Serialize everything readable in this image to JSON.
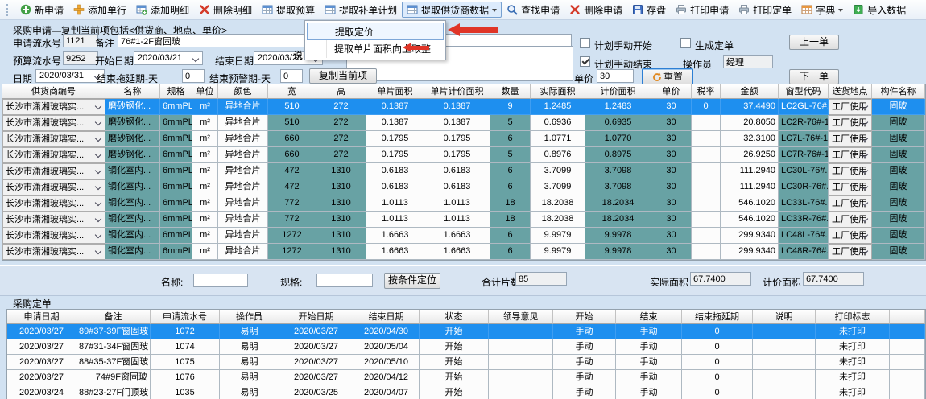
{
  "colors": {
    "teal_cell": "#68a2a4",
    "selection_blue": "#1e8fef",
    "annotation_red": "#e03527"
  },
  "toolbar": {
    "items": [
      {
        "name": "new-application-button",
        "icon": "new-plus-icon",
        "label": "新申请"
      },
      {
        "name": "add-single-row-button",
        "icon": "add-row-icon",
        "label": "添加单行"
      },
      {
        "name": "add-detail-button",
        "icon": "add-detail-icon",
        "label": "添加明细"
      },
      {
        "name": "delete-detail-button",
        "icon": "delete-detail-icon",
        "label": "删除明细"
      },
      {
        "name": "extract-budget-button",
        "icon": "extract-budget-icon",
        "label": "提取预算"
      },
      {
        "name": "extract-supplement-plan-button",
        "icon": "extract-plan-icon",
        "label": "提取补单计划"
      },
      {
        "name": "extract-supplier-data-button",
        "icon": "extract-supplier-icon",
        "label": "提取供货商数据",
        "caret": true,
        "active": true
      },
      {
        "name": "find-application-button",
        "icon": "search-icon",
        "label": "查找申请"
      },
      {
        "name": "delete-application-button",
        "icon": "delete-application-icon",
        "label": "删除申请"
      },
      {
        "name": "save-button",
        "icon": "save-icon",
        "label": "存盘"
      },
      {
        "name": "print-application-button",
        "icon": "print-application-icon",
        "label": "打印申请"
      },
      {
        "name": "print-order-button",
        "icon": "print-order-icon",
        "label": "打印定单"
      },
      {
        "name": "dictionary-button",
        "icon": "dictionary-icon",
        "label": "字典",
        "caret": true
      },
      {
        "name": "import-data-button",
        "icon": "import-data-icon",
        "label": "导入数据"
      }
    ]
  },
  "context_menu": {
    "items": [
      {
        "label": "提取定价",
        "highlighted": true
      },
      {
        "label": "提取单片面积向上取整",
        "highlighted": false
      }
    ]
  },
  "form": {
    "title": "采购申请—复制当前项包括<供货商、地点、单价>",
    "app_serial_label": "申请流水号",
    "app_serial_value": "1121",
    "remark_label": "备注",
    "remark_value": "76#1-2F窗固玻",
    "budget_serial_label": "预算流水号",
    "budget_serial_value": "9252",
    "start_date_label": "开始日期",
    "start_date_value": "2020/03/21",
    "end_date_label": "结束日期",
    "end_date_value": "2020/03/28",
    "date_label": "日期",
    "date_value": "2020/03/31",
    "end_delay_label": "结束拖延期-天",
    "end_delay_value": "0",
    "end_warning_label": "结束预警期-天",
    "end_warning_value": "0",
    "copy_current_button": "复制当前项",
    "description_label": "说明",
    "checkboxes": [
      {
        "label": "计划手动开始",
        "checked": false
      },
      {
        "label": "生成定单",
        "checked": false
      },
      {
        "label": "计划手动结束",
        "checked": true
      }
    ],
    "operator_label": "操作员",
    "operator_value": "经理",
    "unit_price_label": "单价",
    "unit_price_value": "30",
    "reset_button": "重置",
    "prev_order_button": "上一单",
    "next_order_button": "下一单"
  },
  "main_table": {
    "selected_row": 0,
    "headers": [
      "供货商编号",
      "名称",
      "规格",
      "单位",
      "颜色",
      "宽",
      "高",
      "单片面积",
      "单片计价面积",
      "数量",
      "实际面积",
      "计价面积",
      "单价",
      "税率",
      "金额",
      "窗型代码",
      "送货地点",
      "构件名称"
    ],
    "rows": [
      [
        "长沙市潇湘玻璃实...",
        "磨砂钢化...",
        "6mmPLE...",
        "m²",
        "异地合片",
        "510",
        "272",
        "0.1387",
        "0.1387",
        "9",
        "1.2485",
        "1.2483",
        "30",
        "0",
        "37.4490",
        "LC2GL-76#...",
        "工厂使用",
        "固玻"
      ],
      [
        "长沙市潇湘玻璃实...",
        "磨砂钢化...",
        "6mmPLE...",
        "m²",
        "异地合片",
        "510",
        "272",
        "0.1387",
        "0.1387",
        "5",
        "0.6936",
        "0.6935",
        "30",
        "",
        "20.8050",
        "LC2R-76#-1F",
        "工厂使用",
        "固玻"
      ],
      [
        "长沙市潇湘玻璃实...",
        "磨砂钢化...",
        "6mmPLE...",
        "m²",
        "异地合片",
        "660",
        "272",
        "0.1795",
        "0.1795",
        "6",
        "1.0771",
        "1.0770",
        "30",
        "",
        "32.3100",
        "LC7L-76#-1FO",
        "工厂使用",
        "固玻"
      ],
      [
        "长沙市潇湘玻璃实...",
        "磨砂钢化...",
        "6mmPLE...",
        "m²",
        "异地合片",
        "660",
        "272",
        "0.1795",
        "0.1795",
        "5",
        "0.8976",
        "0.8975",
        "30",
        "",
        "26.9250",
        "LC7R-76#-1FO",
        "工厂使用",
        "固玻"
      ],
      [
        "长沙市潇湘玻璃实...",
        "钢化室内...",
        "6mmPLE...",
        "m²",
        "异地合片",
        "472",
        "1310",
        "0.6183",
        "0.6183",
        "6",
        "3.7099",
        "3.7098",
        "30",
        "",
        "111.2940",
        "LC30L-76#...",
        "工厂使用",
        "固玻"
      ],
      [
        "长沙市潇湘玻璃实...",
        "钢化室内...",
        "6mmPLE...",
        "m²",
        "异地合片",
        "472",
        "1310",
        "0.6183",
        "0.6183",
        "6",
        "3.7099",
        "3.7098",
        "30",
        "",
        "111.2940",
        "LC30R-76#...",
        "工厂使用",
        "固玻"
      ],
      [
        "长沙市潇湘玻璃实...",
        "钢化室内...",
        "6mmPLE...",
        "m²",
        "异地合片",
        "772",
        "1310",
        "1.0113",
        "1.0113",
        "18",
        "18.2038",
        "18.2034",
        "30",
        "",
        "546.1020",
        "LC33L-76#...",
        "工厂使用",
        "固玻"
      ],
      [
        "长沙市潇湘玻璃实...",
        "钢化室内...",
        "6mmPLE...",
        "m²",
        "异地合片",
        "772",
        "1310",
        "1.0113",
        "1.0113",
        "18",
        "18.2038",
        "18.2034",
        "30",
        "",
        "546.1020",
        "LC33R-76#...",
        "工厂使用",
        "固玻"
      ],
      [
        "长沙市潇湘玻璃实...",
        "钢化室内...",
        "6mmPLE...",
        "m²",
        "异地合片",
        "1272",
        "1310",
        "1.6663",
        "1.6663",
        "6",
        "9.9979",
        "9.9978",
        "30",
        "",
        "299.9340",
        "LC48L-76#...",
        "工厂使用",
        "固玻"
      ],
      [
        "长沙市潇湘玻璃实...",
        "钢化室内...",
        "6mmPLE...",
        "m²",
        "异地合片",
        "1272",
        "1310",
        "1.6663",
        "1.6663",
        "6",
        "9.9979",
        "9.9978",
        "30",
        "",
        "299.9340",
        "LC48R-76#...",
        "工厂使用",
        "固玻"
      ]
    ]
  },
  "filter_bar": {
    "name_label": "名称:",
    "name_value": "",
    "spec_label": "规格:",
    "spec_value": "",
    "locate_button": "按条件定位",
    "total_pieces_label": "合计片数",
    "total_pieces_value": "85",
    "actual_area_label": "实际面积",
    "actual_area_value": "67.7400",
    "price_area_label": "计价面积",
    "price_area_value": "67.7400"
  },
  "orders": {
    "section_title": "采购定单",
    "selected_row": 0,
    "headers": [
      "申请日期",
      "备注",
      "申请流水号",
      "操作员",
      "开始日期",
      "结束日期",
      "状态",
      "领导意见",
      "开始",
      "结束",
      "结束拖延期",
      "说明",
      "打印标志"
    ],
    "rows": [
      [
        "2020/03/27",
        "89#37-39F窗固玻",
        "1072",
        "易明",
        "2020/03/27",
        "2020/04/30",
        "开始",
        "",
        "手动",
        "手动",
        "0",
        "",
        "未打印"
      ],
      [
        "2020/03/27",
        "87#31-34F窗固玻",
        "1074",
        "易明",
        "2020/03/27",
        "2020/05/04",
        "开始",
        "",
        "手动",
        "手动",
        "0",
        "",
        "未打印"
      ],
      [
        "2020/03/27",
        "88#35-37F窗固玻",
        "1075",
        "易明",
        "2020/03/27",
        "2020/05/10",
        "开始",
        "",
        "手动",
        "手动",
        "0",
        "",
        "未打印"
      ],
      [
        "2020/03/27",
        "74#9F窗固玻",
        "1076",
        "易明",
        "2020/03/27",
        "2020/04/12",
        "开始",
        "",
        "手动",
        "手动",
        "0",
        "",
        "未打印"
      ],
      [
        "2020/03/24",
        "88#23-27F门顶玻",
        "1035",
        "易明",
        "2020/03/25",
        "2020/04/07",
        "开始",
        "",
        "手动",
        "手动",
        "0",
        "",
        "未打印"
      ]
    ]
  }
}
